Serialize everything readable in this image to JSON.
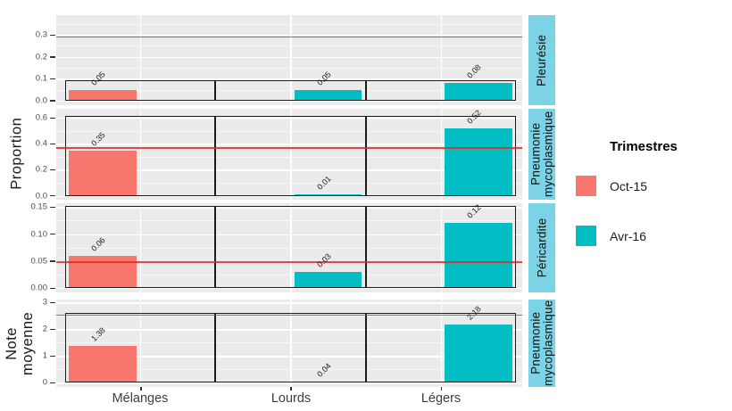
{
  "chart_data": {
    "type": "bar",
    "title": "",
    "categories": [
      "Mélanges",
      "Lourds",
      "Légers"
    ],
    "series": [
      {
        "name": "Oct-15",
        "color": "#F8766D"
      },
      {
        "name": "Avr-16",
        "color": "#00BEC4"
      }
    ],
    "y_axis_titles": {
      "top": "Proportion",
      "bottom": "Note\nmoyenne"
    },
    "legend": {
      "title": "Trimestres",
      "position": "right"
    },
    "grid": "on",
    "panel_bg": "#EBEBEB",
    "strip_bg": "#7DD3E6",
    "ref_line_color": "rgba(222,45,38,0.85)",
    "panels": [
      {
        "strip": "Pleurésie",
        "ylim": [
          -0.02,
          0.39
        ],
        "ticks": [
          {
            "v": 0,
            "label": "0.0"
          },
          {
            "v": 0.1,
            "label": "0.1"
          },
          {
            "v": 0.2,
            "label": "0.2"
          },
          {
            "v": 0.3,
            "label": "0.3"
          }
        ],
        "minor_ticks": [
          0.05,
          0.15,
          0.25,
          0.35
        ],
        "ref_line": 0.29,
        "box_top": 0.095,
        "bars": [
          {
            "category": "Mélanges",
            "series": "Oct-15",
            "value": 0.05,
            "label": "0.05"
          },
          {
            "category": "Lourds",
            "series": "Avr-16",
            "value": 0.05,
            "label": "0.05"
          },
          {
            "category": "Légers",
            "series": "Avr-16",
            "value": 0.08,
            "label": "0.08"
          }
        ]
      },
      {
        "strip": "Pneumonie\nmycoplasmique",
        "ylim": [
          -0.03,
          0.67
        ],
        "ticks": [
          {
            "v": 0,
            "label": "0.0"
          },
          {
            "v": 0.2,
            "label": "0.2"
          },
          {
            "v": 0.4,
            "label": "0.4"
          },
          {
            "v": 0.6,
            "label": "0.6"
          }
        ],
        "minor_ticks": [
          0.1,
          0.3,
          0.5
        ],
        "ref_line": 0.37,
        "box_top": 0.615,
        "bars": [
          {
            "category": "Mélanges",
            "series": "Oct-15",
            "value": 0.35,
            "label": "0.35"
          },
          {
            "category": "Lourds",
            "series": "Avr-16",
            "value": 0.01,
            "label": "0.01"
          },
          {
            "category": "Légers",
            "series": "Avr-16",
            "value": 0.52,
            "label": "0.52"
          }
        ]
      },
      {
        "strip": "Péricardite",
        "ylim": [
          -0.008,
          0.157
        ],
        "ticks": [
          {
            "v": 0,
            "label": "0.00"
          },
          {
            "v": 0.05,
            "label": "0.05"
          },
          {
            "v": 0.1,
            "label": "0.10"
          },
          {
            "v": 0.15,
            "label": "0.15"
          }
        ],
        "minor_ticks": [
          0.025,
          0.075,
          0.125
        ],
        "ref_line": 0.048,
        "box_top": 0.152,
        "bars": [
          {
            "category": "Mélanges",
            "series": "Oct-15",
            "value": 0.06,
            "label": "0.06"
          },
          {
            "category": "Lourds",
            "series": "Avr-16",
            "value": 0.03,
            "label": "0.03"
          },
          {
            "category": "Légers",
            "series": "Avr-16",
            "value": 0.12,
            "label": "0.12"
          }
        ]
      },
      {
        "strip": "Pneumonie\nmycoplasmique",
        "ylim": [
          -0.16,
          3.11
        ],
        "ticks": [
          {
            "v": 0,
            "label": "0"
          },
          {
            "v": 1,
            "label": "1"
          },
          {
            "v": 2,
            "label": "2"
          },
          {
            "v": 3,
            "label": "3"
          }
        ],
        "minor_ticks": [
          0.5,
          1.5,
          2.5
        ],
        "ref_line": 2.53,
        "box_top": 2.6,
        "bars": [
          {
            "category": "Mélanges",
            "series": "Oct-15",
            "value": 1.38,
            "label": "1.38"
          },
          {
            "category": "Lourds",
            "series": "Avr-16",
            "value": 0.04,
            "label": "0.04"
          },
          {
            "category": "Légers",
            "series": "Avr-16",
            "value": 2.18,
            "label": "2.18"
          }
        ]
      }
    ]
  }
}
